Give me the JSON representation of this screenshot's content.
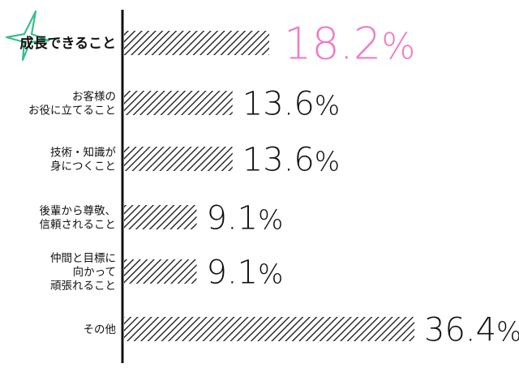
{
  "chart_data": {
    "type": "bar",
    "orientation": "horizontal",
    "title": "",
    "xlabel": "",
    "ylabel": "",
    "unit": "%",
    "categories": [
      [
        "成長できること"
      ],
      [
        "お客様の",
        "お役に立てること"
      ],
      [
        "技術・知識が",
        "身につくこと"
      ],
      [
        "後輩から尊敬、",
        "信頼されること"
      ],
      [
        "仲間と目標に",
        "向かって",
        "頑張れること"
      ],
      [
        "その他"
      ]
    ],
    "values": [
      18.2,
      13.6,
      13.6,
      9.1,
      9.1,
      36.4
    ],
    "value_labels": [
      "18.2%",
      "13.6%",
      "13.6%",
      "9.1%",
      "9.1%",
      "36.4%"
    ],
    "highlight_index": 0,
    "xlim": [
      0,
      36.4
    ],
    "grid": false,
    "legend": "none"
  },
  "colors": {
    "bar_stripe": "#111111",
    "axis": "#111111",
    "highlight_text": "#f07cc8",
    "star_outline": "#35c08a"
  },
  "icons": {
    "highlight_marker": "star-outline-icon"
  }
}
